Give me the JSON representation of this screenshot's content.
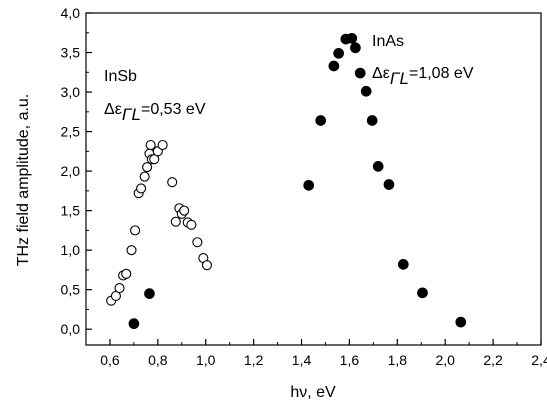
{
  "chart_data": {
    "type": "scatter",
    "xlabel": "hν, eV",
    "ylabel": "THz field amplitude, a.u.",
    "xlim": [
      0.5,
      2.4
    ],
    "ylim": [
      -0.2,
      4.0
    ],
    "xticks": [
      "0,6",
      "0,8",
      "1,0",
      "1,2",
      "1,4",
      "1,6",
      "1,8",
      "2,0",
      "2,2",
      "2,4"
    ],
    "xtick_values": [
      0.6,
      0.8,
      1.0,
      1.2,
      1.4,
      1.6,
      1.8,
      2.0,
      2.2,
      2.4
    ],
    "yticks": [
      "0,0",
      "0,5",
      "1,0",
      "1,5",
      "2,0",
      "2,5",
      "3,0",
      "3,5",
      "4,0"
    ],
    "ytick_values": [
      0.0,
      0.5,
      1.0,
      1.5,
      2.0,
      2.5,
      3.0,
      3.5,
      4.0
    ],
    "grid": false,
    "annotations": {
      "insb_name": "InSb",
      "insb_gap_symbol": "Δε",
      "insb_gap_sub": "ΓL",
      "insb_gap_value": "=0,53 eV",
      "inas_name": "InAs",
      "inas_gap_symbol": "Δε",
      "inas_gap_sub": "ΓL",
      "inas_gap_value": "=1,08 eV"
    },
    "series": [
      {
        "marker": "open-circle",
        "x": [
          0.605,
          0.625,
          0.64,
          0.655,
          0.668,
          0.69,
          0.705,
          0.72,
          0.73,
          0.745,
          0.755,
          0.765,
          0.77,
          0.775,
          0.785,
          0.8,
          0.82,
          0.86,
          0.875,
          0.89,
          0.9,
          0.91,
          0.925,
          0.94,
          0.965,
          0.99,
          1.005
        ],
        "y": [
          0.36,
          0.42,
          0.52,
          0.68,
          0.7,
          1.0,
          1.25,
          1.72,
          1.78,
          1.93,
          2.05,
          2.22,
          2.33,
          2.15,
          2.15,
          2.25,
          2.33,
          1.86,
          1.36,
          1.53,
          1.46,
          1.5,
          1.35,
          1.32,
          1.1,
          0.9,
          0.81
        ]
      },
      {
        "marker": "filled-circle",
        "x": [
          0.7,
          0.765,
          1.43,
          1.48,
          1.535,
          1.555,
          1.585,
          1.61,
          1.625,
          1.645,
          1.67,
          1.695,
          1.72,
          1.765,
          1.825,
          1.905,
          2.065
        ],
        "y": [
          0.07,
          0.45,
          1.82,
          2.64,
          3.33,
          3.49,
          3.67,
          3.68,
          3.56,
          3.24,
          3.01,
          2.64,
          2.06,
          1.83,
          0.82,
          0.46,
          0.09
        ]
      }
    ]
  }
}
